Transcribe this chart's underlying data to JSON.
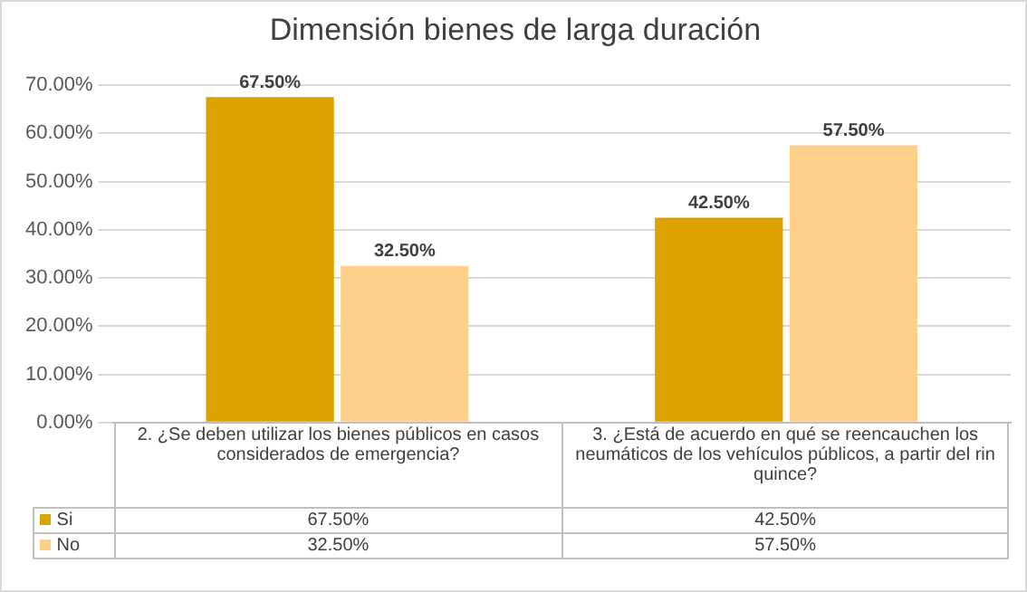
{
  "chart_data": {
    "type": "bar",
    "title": "Dimensión bienes de larga duración",
    "categories": [
      "2. ¿Se deben utilizar los bienes públicos en casos considerados de emergencia?",
      "3. ¿Está de acuerdo en qué se reencauchen los neumáticos de los vehículos públicos, a partir del rin quince?"
    ],
    "series": [
      {
        "name": "Si",
        "color": "#dca300",
        "values": [
          67.5,
          42.5
        ],
        "value_labels": [
          "67.50%",
          "42.50%"
        ]
      },
      {
        "name": "No",
        "color": "#ffd08a",
        "values": [
          32.5,
          57.5
        ],
        "value_labels": [
          "32.50%",
          "57.50%"
        ]
      }
    ],
    "ylim": [
      0,
      70
    ],
    "yticks": [
      {
        "value": 0,
        "label": "0.00%"
      },
      {
        "value": 10,
        "label": "10.00%"
      },
      {
        "value": 20,
        "label": "20.00%"
      },
      {
        "value": 30,
        "label": "30.00%"
      },
      {
        "value": 40,
        "label": "40.00%"
      },
      {
        "value": 50,
        "label": "50.00%"
      },
      {
        "value": 60,
        "label": "60.00%"
      },
      {
        "value": 70,
        "label": "70.00%"
      }
    ],
    "grid": "y",
    "legend": "bottom"
  }
}
